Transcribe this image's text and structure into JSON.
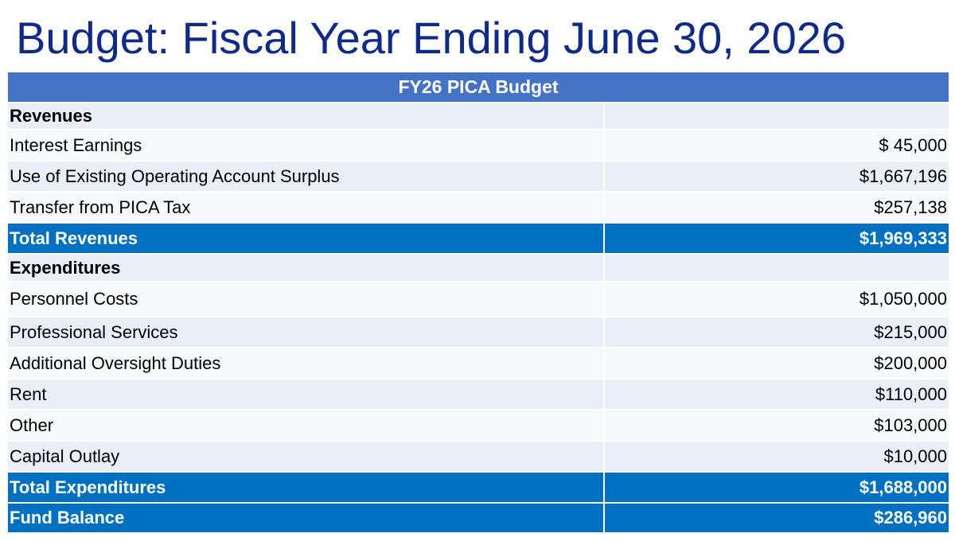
{
  "slide": {
    "title": "Budget: Fiscal Year Ending June 30, 2026"
  },
  "table": {
    "header": "FY26 PICA Budget",
    "rows": [
      {
        "label": "Revenues",
        "amount": ""
      },
      {
        "label": "Interest Earnings",
        "amount": "$ 45,000"
      },
      {
        "label": "Use of Existing Operating Account Surplus",
        "amount": "$1,667,196"
      },
      {
        "label": "Transfer from PICA Tax",
        "amount": "$257,138"
      },
      {
        "label": "Total Revenues",
        "amount": "$1,969,333"
      },
      {
        "label": "Expenditures",
        "amount": ""
      },
      {
        "label": "Personnel Costs",
        "amount": "$1,050,000"
      },
      {
        "label": "Professional Services",
        "amount": "$215,000"
      },
      {
        "label": "Additional Oversight Duties",
        "amount": "$200,000"
      },
      {
        "label": "Rent",
        "amount": "$110,000"
      },
      {
        "label": "Other",
        "amount": "$103,000"
      },
      {
        "label": "Capital Outlay",
        "amount": "$10,000"
      },
      {
        "label": "Total Expenditures",
        "amount": "$1,688,000"
      },
      {
        "label": "Fund Balance",
        "amount": "$286,960"
      }
    ]
  },
  "colors": {
    "title_text": "#0f2a8a",
    "header_fill": "#4472c4",
    "total_fill": "#0070c0",
    "band_dark": "#eaeef7",
    "band_light": "#f6f8fb"
  }
}
